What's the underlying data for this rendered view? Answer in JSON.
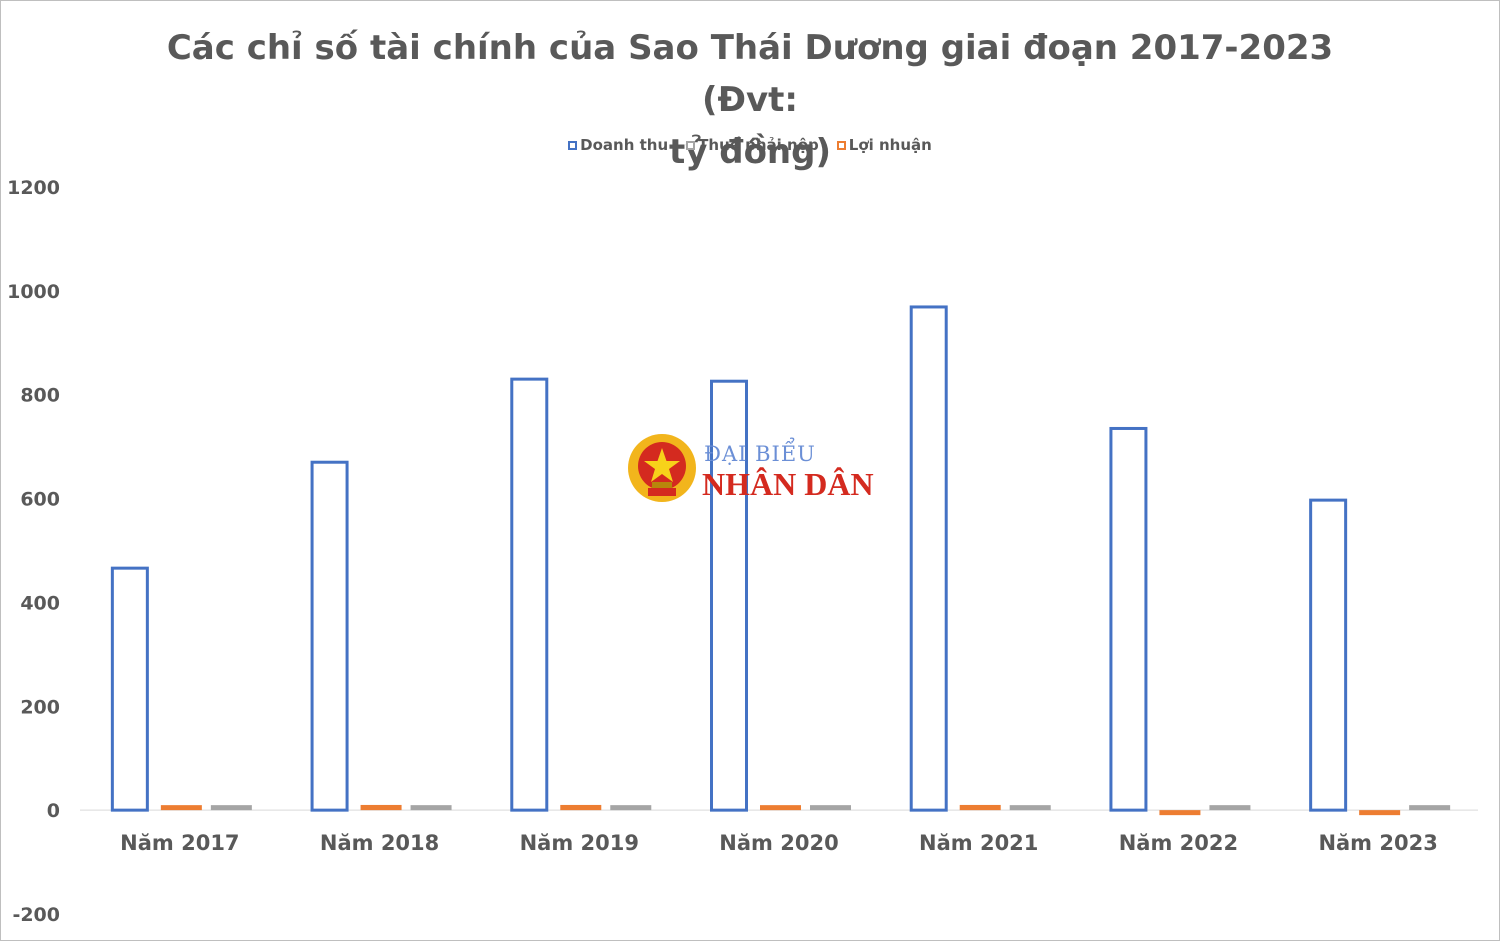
{
  "chart_data": {
    "type": "bar",
    "title": "Các chỉ số tài chính của Sao Thái Dương giai đoạn 2017-2023 (Đvt: tỷ đồng)",
    "title_lines": [
      "Các chỉ số tài chính của Sao Thái Dương giai đoạn 2017-2023 (Đvt:",
      "tỷ đồng)"
    ],
    "categories": [
      "Năm 2017",
      "Năm 2018",
      "Năm 2019",
      "Năm 2020",
      "Năm 2021",
      "Năm 2022",
      "Năm 2023"
    ],
    "series": [
      {
        "name": "Doanh thu",
        "color": "#4472c4",
        "style": "outline",
        "values": [
          466,
          670,
          830,
          826,
          969,
          735,
          597
        ]
      },
      {
        "name": "Thuế phải nộp",
        "color": "#a5a5a5",
        "values": [
          2,
          2,
          2,
          2,
          2,
          2,
          2
        ]
      },
      {
        "name": "Lợi nhuận",
        "color": "#ed7d31",
        "values": [
          4,
          10,
          10,
          6,
          10,
          -3,
          -3
        ]
      }
    ],
    "bar_order": [
      "Doanh thu",
      "Lợi nhuận",
      "Thuế phải nộp"
    ],
    "legend_order": [
      "Doanh thu",
      "Thuế phải nộp",
      "Lợi nhuận"
    ],
    "ylim": [
      -200,
      1200
    ],
    "yticks": [
      -200,
      0,
      200,
      400,
      600,
      800,
      1000,
      1200
    ],
    "grid": false,
    "legend_position": "top"
  },
  "watermark": {
    "line1": "ĐẠI BIỂU",
    "line2": "NHÂN DÂN",
    "emblem": "vietnam-emblem-icon"
  }
}
